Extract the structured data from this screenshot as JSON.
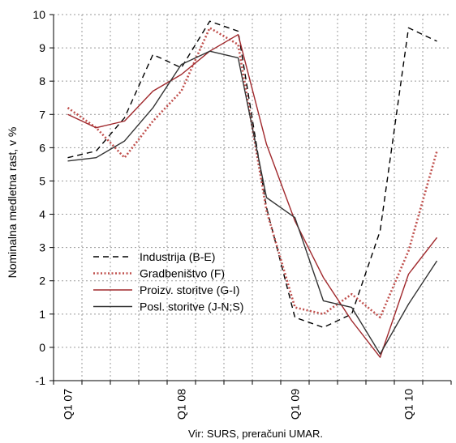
{
  "chart_data": {
    "type": "line",
    "x": [
      "Q1 07",
      "Q2 07",
      "Q3 07",
      "Q4 07",
      "Q1 08",
      "Q2 08",
      "Q3 08",
      "Q4 08",
      "Q1 09",
      "Q2 09",
      "Q3 09",
      "Q4 09",
      "Q1 10",
      "Q2 10"
    ],
    "x_tick_labels": [
      "Q1 07",
      "Q1 08",
      "Q1 09",
      "Q1 10"
    ],
    "ylabel": "Nominalna medletna rast, v %",
    "ylim": [
      -1,
      10
    ],
    "yticks": [
      -1,
      0,
      1,
      2,
      3,
      4,
      5,
      6,
      7,
      8,
      9,
      10
    ],
    "grid": true,
    "legend_position": "lower-left",
    "series": [
      {
        "name": "Industrija (B-E)",
        "color": "#000000",
        "style": "dashed",
        "values": [
          5.7,
          5.9,
          6.9,
          8.8,
          8.4,
          9.8,
          9.5,
          4.2,
          0.9,
          0.6,
          1.0,
          3.5,
          9.6,
          9.2
        ]
      },
      {
        "name": "Gradbeništvo (F)",
        "color": "#C0504D",
        "style": "dotted",
        "values": [
          7.2,
          6.6,
          5.7,
          6.8,
          7.7,
          9.6,
          9.1,
          4.1,
          1.2,
          1.0,
          1.6,
          0.9,
          2.9,
          5.9
        ]
      },
      {
        "name": "Proizv. storitve (G-I)",
        "color": "#A0282C",
        "style": "solid",
        "values": [
          7.0,
          6.6,
          6.8,
          7.7,
          8.2,
          8.9,
          9.4,
          6.1,
          3.8,
          2.1,
          0.8,
          -0.3,
          2.2,
          3.3
        ]
      },
      {
        "name": "Posl. storitve (J-N;S)",
        "color": "#333333",
        "style": "solid",
        "values": [
          5.6,
          5.7,
          6.2,
          7.2,
          8.5,
          8.9,
          8.7,
          4.5,
          3.9,
          1.4,
          1.2,
          -0.2,
          1.3,
          2.6
        ]
      }
    ],
    "source": "Vir: SURS, preračuni UMAR."
  }
}
